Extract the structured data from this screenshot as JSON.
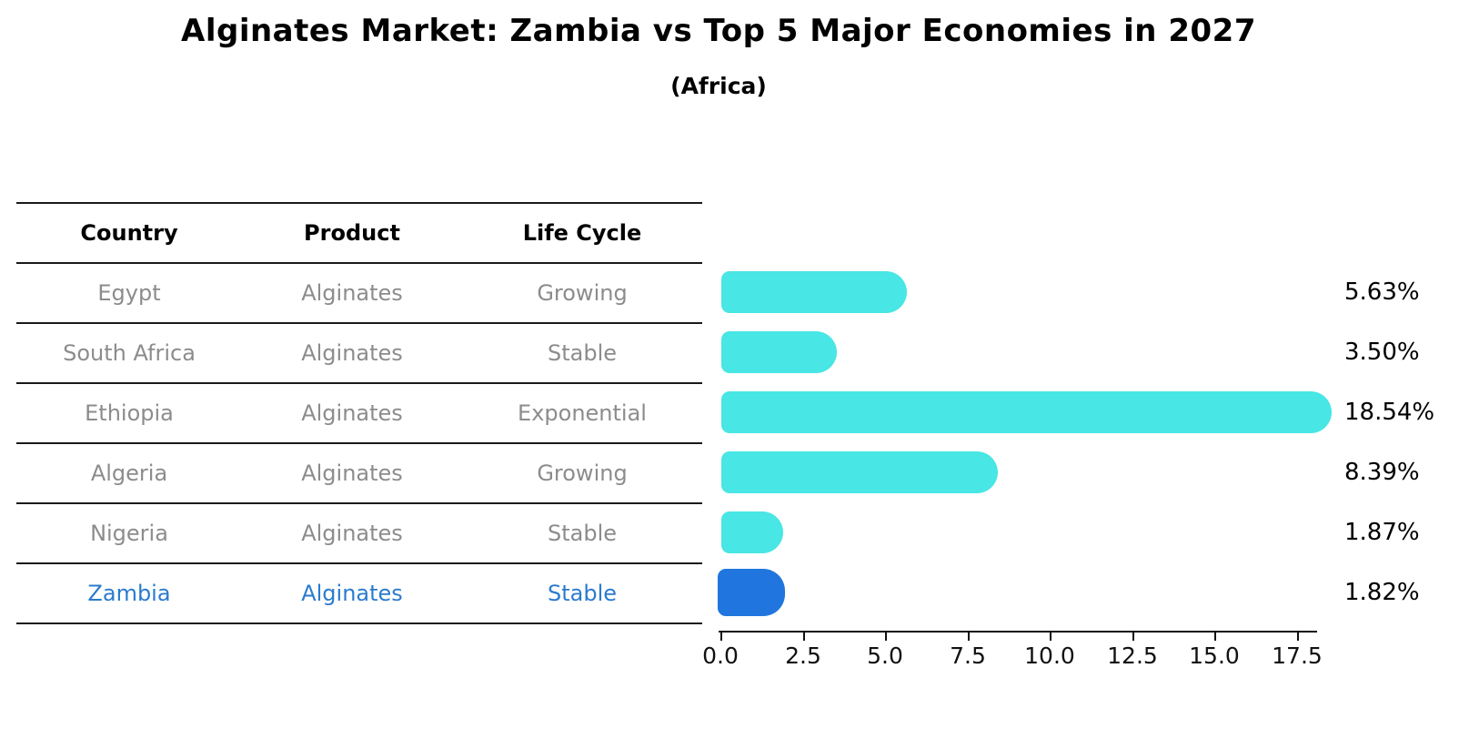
{
  "chart_data": {
    "type": "bar",
    "orientation": "horizontal",
    "title": "Alginates Market: Zambia vs Top 5 Major Economies in 2027",
    "subtitle": "(Africa)",
    "categories": [
      "Egypt",
      "South Africa",
      "Ethiopia",
      "Algeria",
      "Nigeria",
      "Zambia"
    ],
    "values": [
      5.63,
      3.5,
      18.54,
      8.39,
      1.87,
      1.82
    ],
    "value_labels": [
      "5.63%",
      "3.50%",
      "18.54%",
      "8.39%",
      "1.87%",
      "1.82%"
    ],
    "x_ticks": [
      0.0,
      2.5,
      5.0,
      7.5,
      10.0,
      12.5,
      15.0,
      17.5
    ],
    "x_tick_labels": [
      "0.0",
      "2.5",
      "5.0",
      "7.5",
      "10.0",
      "12.5",
      "15.0",
      "17.5"
    ],
    "xlim": [
      0,
      18.25
    ],
    "grid": false,
    "legend": "none",
    "bar_color": "#48e6e4",
    "highlight_color": "#2076de",
    "highlight_index": 5
  },
  "table": {
    "headers": [
      "Country",
      "Product",
      "Life Cycle"
    ],
    "rows": [
      {
        "country": "Egypt",
        "product": "Alginates",
        "life_cycle": "Growing",
        "highlight": false
      },
      {
        "country": "South Africa",
        "product": "Alginates",
        "life_cycle": "Stable",
        "highlight": false
      },
      {
        "country": "Ethiopia",
        "product": "Alginates",
        "life_cycle": "Exponential",
        "highlight": false
      },
      {
        "country": "Algeria",
        "product": "Alginates",
        "life_cycle": "Growing",
        "highlight": false
      },
      {
        "country": "Nigeria",
        "product": "Alginates",
        "life_cycle": "Stable",
        "highlight": false
      },
      {
        "country": "Zambia",
        "product": "Alginates",
        "life_cycle": "Stable",
        "highlight": true
      }
    ]
  },
  "colors": {
    "row_text": "#8c8c8c",
    "header_text": "#000000",
    "highlight_text": "#2b7bcd",
    "axis": "#111111"
  }
}
